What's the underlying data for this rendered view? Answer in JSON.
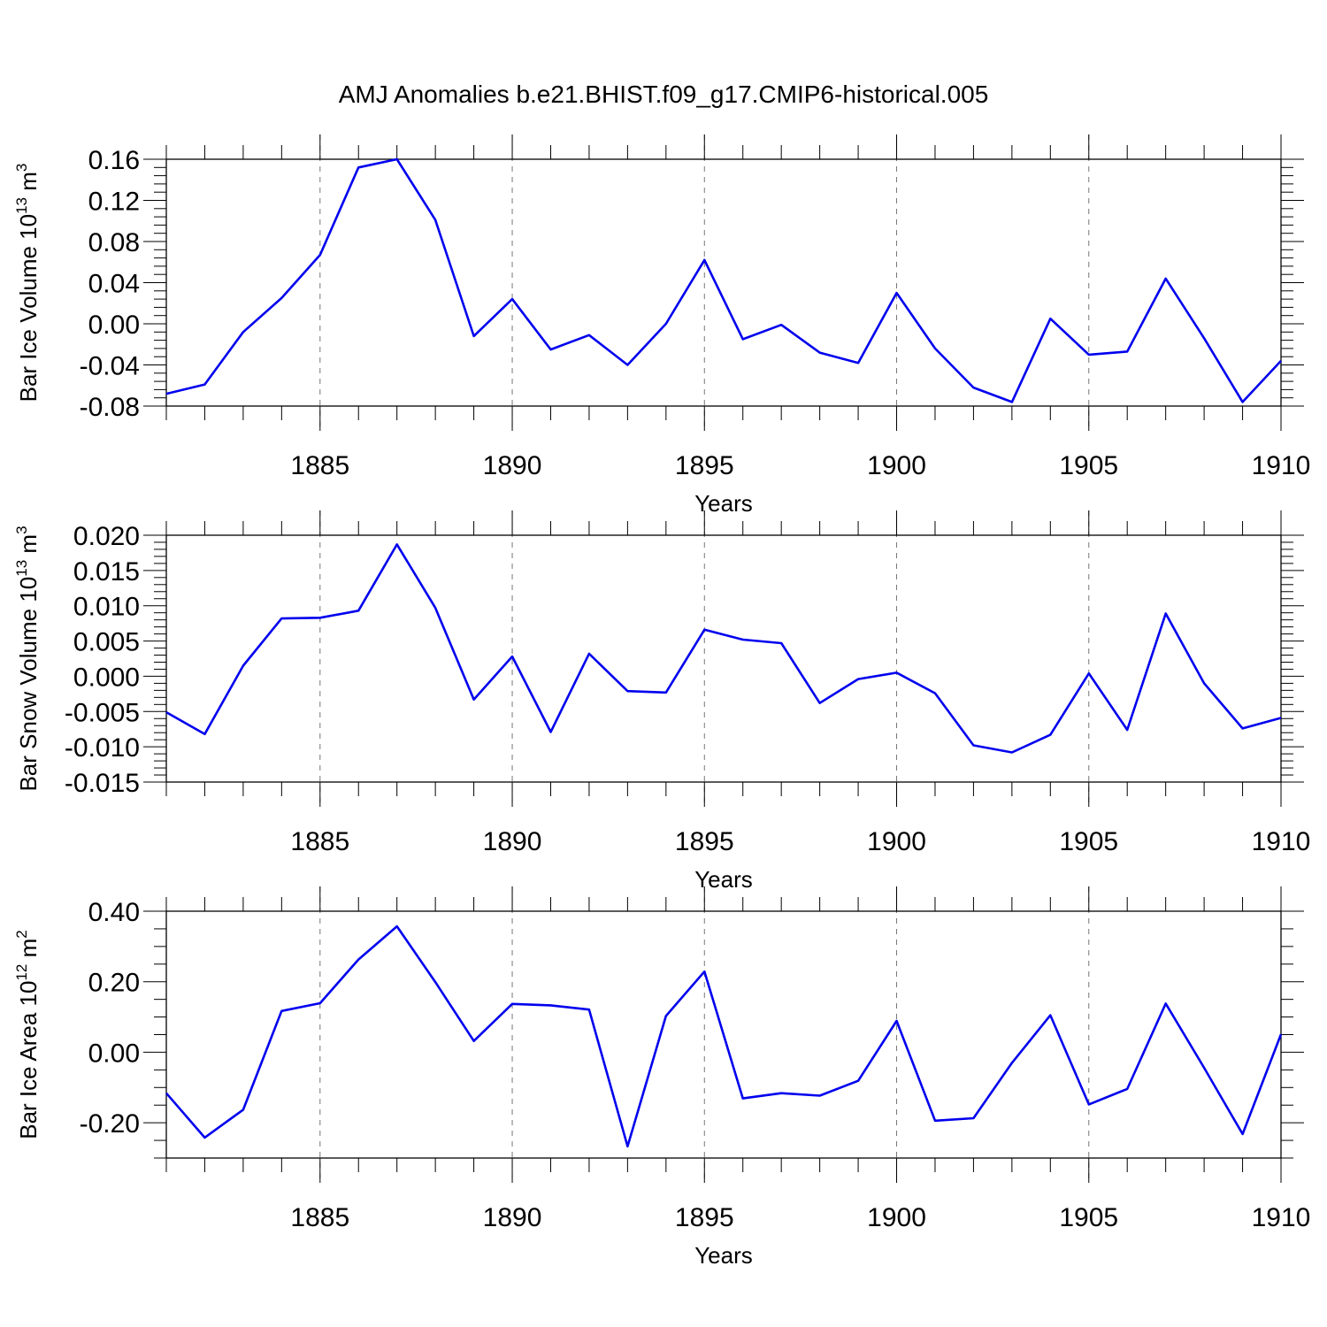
{
  "figure": {
    "title": "AMJ Anomalies b.e21.BHIST.f09_g17.CMIP6-historical.005"
  },
  "colors": {
    "series": "#0000ee",
    "grid": "#777777",
    "axis": "#000000"
  },
  "chart_data": [
    {
      "type": "line",
      "ylabel": "Bar Ice Volume 10",
      "ylabel_sup": "13",
      "ylabel_unit": " m",
      "ylabel_unit_sup": "3",
      "xlabel": "Years",
      "xlim": [
        1881,
        1910
      ],
      "ylim": [
        -0.08,
        0.16
      ],
      "yticks": [
        -0.08,
        -0.04,
        0.0,
        0.04,
        0.08,
        0.12,
        0.16
      ],
      "ytick_labels": [
        "-0.08",
        "-0.04",
        "0.00",
        "0.04",
        "0.08",
        "0.12",
        "0.16"
      ],
      "yminor_step": 0.008,
      "xticks": [
        1885,
        1890,
        1895,
        1900,
        1905,
        1910
      ],
      "xtick_labels": [
        "1885",
        "1890",
        "1895",
        "1900",
        "1905",
        "1910"
      ],
      "grid": "dashed vertical at major x ticks",
      "x": [
        1881,
        1882,
        1883,
        1884,
        1885,
        1886,
        1887,
        1888,
        1889,
        1890,
        1891,
        1892,
        1893,
        1894,
        1895,
        1896,
        1897,
        1898,
        1899,
        1900,
        1901,
        1902,
        1903,
        1904,
        1905,
        1906,
        1907,
        1908,
        1909,
        1910
      ],
      "values": [
        -0.068,
        -0.059,
        -0.008,
        0.025,
        0.067,
        0.152,
        0.16,
        0.101,
        -0.012,
        0.024,
        -0.025,
        -0.011,
        -0.04,
        0.0,
        0.062,
        -0.015,
        -0.001,
        -0.028,
        -0.038,
        0.03,
        -0.024,
        -0.062,
        -0.076,
        0.005,
        -0.03,
        -0.027,
        0.044,
        -0.014,
        -0.076,
        -0.036
      ]
    },
    {
      "type": "line",
      "ylabel": "Bar Snow Volume 10",
      "ylabel_sup": "13",
      "ylabel_unit": " m",
      "ylabel_unit_sup": "3",
      "xlabel": "Years",
      "xlim": [
        1881,
        1910
      ],
      "ylim": [
        -0.015,
        0.02
      ],
      "yticks": [
        -0.015,
        -0.01,
        -0.005,
        0.0,
        0.005,
        0.01,
        0.015,
        0.02
      ],
      "ytick_labels": [
        "-0.015",
        "-0.010",
        "-0.005",
        "0.000",
        "0.005",
        "0.010",
        "0.015",
        "0.020"
      ],
      "yminor_step": 0.001,
      "xticks": [
        1885,
        1890,
        1895,
        1900,
        1905,
        1910
      ],
      "xtick_labels": [
        "1885",
        "1890",
        "1895",
        "1900",
        "1905",
        "1910"
      ],
      "grid": "dashed vertical at major x ticks",
      "x": [
        1881,
        1882,
        1883,
        1884,
        1885,
        1886,
        1887,
        1888,
        1889,
        1890,
        1891,
        1892,
        1893,
        1894,
        1895,
        1896,
        1897,
        1898,
        1899,
        1900,
        1901,
        1902,
        1903,
        1904,
        1905,
        1906,
        1907,
        1908,
        1909,
        1910
      ],
      "values": [
        -0.0051,
        -0.0082,
        0.0015,
        0.0082,
        0.0083,
        0.0093,
        0.0187,
        0.0097,
        -0.0033,
        0.0028,
        -0.0079,
        0.0032,
        -0.0021,
        -0.0023,
        0.0066,
        0.0052,
        0.0047,
        -0.0038,
        -0.0004,
        0.0005,
        -0.0024,
        -0.0098,
        -0.0108,
        -0.0083,
        0.0004,
        -0.0076,
        0.0089,
        -0.001,
        -0.0074,
        -0.0059
      ]
    },
    {
      "type": "line",
      "ylabel": "Bar Ice Area 10",
      "ylabel_sup": "12",
      "ylabel_unit": " m",
      "ylabel_unit_sup": "2",
      "xlabel": "Years",
      "xlim": [
        1881,
        1910
      ],
      "ylim": [
        -0.3,
        0.4
      ],
      "yticks": [
        -0.2,
        0.0,
        0.2,
        0.4
      ],
      "ytick_labels": [
        "-0.20",
        "0.00",
        "0.20",
        "0.40"
      ],
      "yminor_step": 0.05,
      "xticks": [
        1885,
        1890,
        1895,
        1900,
        1905,
        1910
      ],
      "xtick_labels": [
        "1885",
        "1890",
        "1895",
        "1900",
        "1905",
        "1910"
      ],
      "grid": "dashed vertical at major x ticks",
      "x": [
        1881,
        1882,
        1883,
        1884,
        1885,
        1886,
        1887,
        1888,
        1889,
        1890,
        1891,
        1892,
        1893,
        1894,
        1895,
        1896,
        1897,
        1898,
        1899,
        1900,
        1901,
        1902,
        1903,
        1904,
        1905,
        1906,
        1907,
        1908,
        1909,
        1910
      ],
      "values": [
        -0.116,
        -0.242,
        -0.163,
        0.117,
        0.139,
        0.263,
        0.357,
        0.199,
        0.032,
        0.137,
        0.133,
        0.121,
        -0.267,
        0.103,
        0.229,
        -0.131,
        -0.116,
        -0.123,
        -0.081,
        0.089,
        -0.194,
        -0.187,
        -0.03,
        0.105,
        -0.148,
        -0.104,
        0.138,
        -0.044,
        -0.232,
        0.051
      ]
    }
  ]
}
